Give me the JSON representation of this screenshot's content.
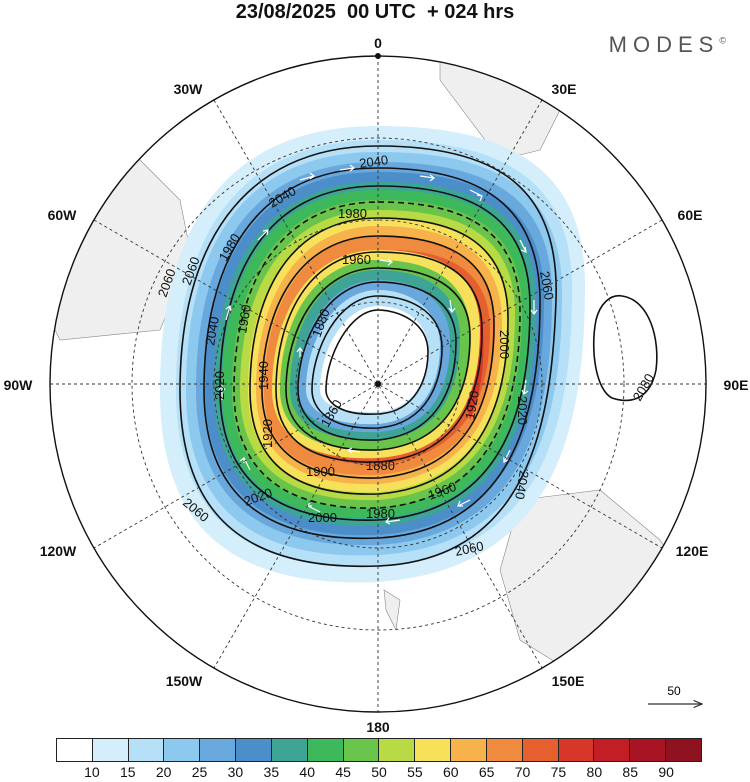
{
  "title": "23/08/2025  00 UTC  + 024 hrs",
  "brand": "MODES",
  "brand_mark": "©",
  "longitude_labels": [
    "0",
    "30E",
    "60E",
    "90E",
    "120E",
    "150E",
    "180",
    "150W",
    "120W",
    "90W",
    "60W",
    "30W"
  ],
  "contours": [
    {
      "value": "2060",
      "kind": "solid"
    },
    {
      "value": "2040",
      "kind": "solid"
    },
    {
      "value": "2020",
      "kind": "solid"
    },
    {
      "value": "2000",
      "kind": "dashed"
    },
    {
      "value": "1980",
      "kind": "solid"
    },
    {
      "value": "1960",
      "kind": "solid"
    },
    {
      "value": "1940",
      "kind": "solid"
    },
    {
      "value": "1920",
      "kind": "solid"
    },
    {
      "value": "1900",
      "kind": "solid"
    },
    {
      "value": "1880",
      "kind": "solid"
    },
    {
      "value": "1860",
      "kind": "solid"
    },
    {
      "value": "2080",
      "kind": "solid"
    }
  ],
  "contour_label_texts": {
    "top": [
      "2040",
      "2040",
      "1980",
      "1960",
      "2060"
    ],
    "right": [
      "2060",
      "2000",
      "2020",
      "2040",
      "1920",
      "2080"
    ],
    "bottom": [
      "1880",
      "1900",
      "1960",
      "1980",
      "2000",
      "2020",
      "2060",
      "2060"
    ],
    "left": [
      "2060",
      "2040",
      "1980",
      "1960",
      "1940",
      "2020",
      "1920",
      "1880",
      "1860"
    ]
  },
  "colorbar": {
    "colors": [
      "#ffffff",
      "#d4eefb",
      "#b5e0f7",
      "#8dc8ee",
      "#68a8dc",
      "#4c8ec9",
      "#3ea596",
      "#3db85a",
      "#69c44b",
      "#b8db45",
      "#f7e15b",
      "#f7b24b",
      "#f08a3f",
      "#e6602f",
      "#d63729",
      "#c21e26",
      "#a81424",
      "#8e1220"
    ],
    "tick_labels": [
      "10",
      "15",
      "20",
      "25",
      "30",
      "35",
      "40",
      "45",
      "50",
      "55",
      "60",
      "65",
      "70",
      "75",
      "80",
      "85",
      "90"
    ]
  },
  "vector_reference": "50"
}
